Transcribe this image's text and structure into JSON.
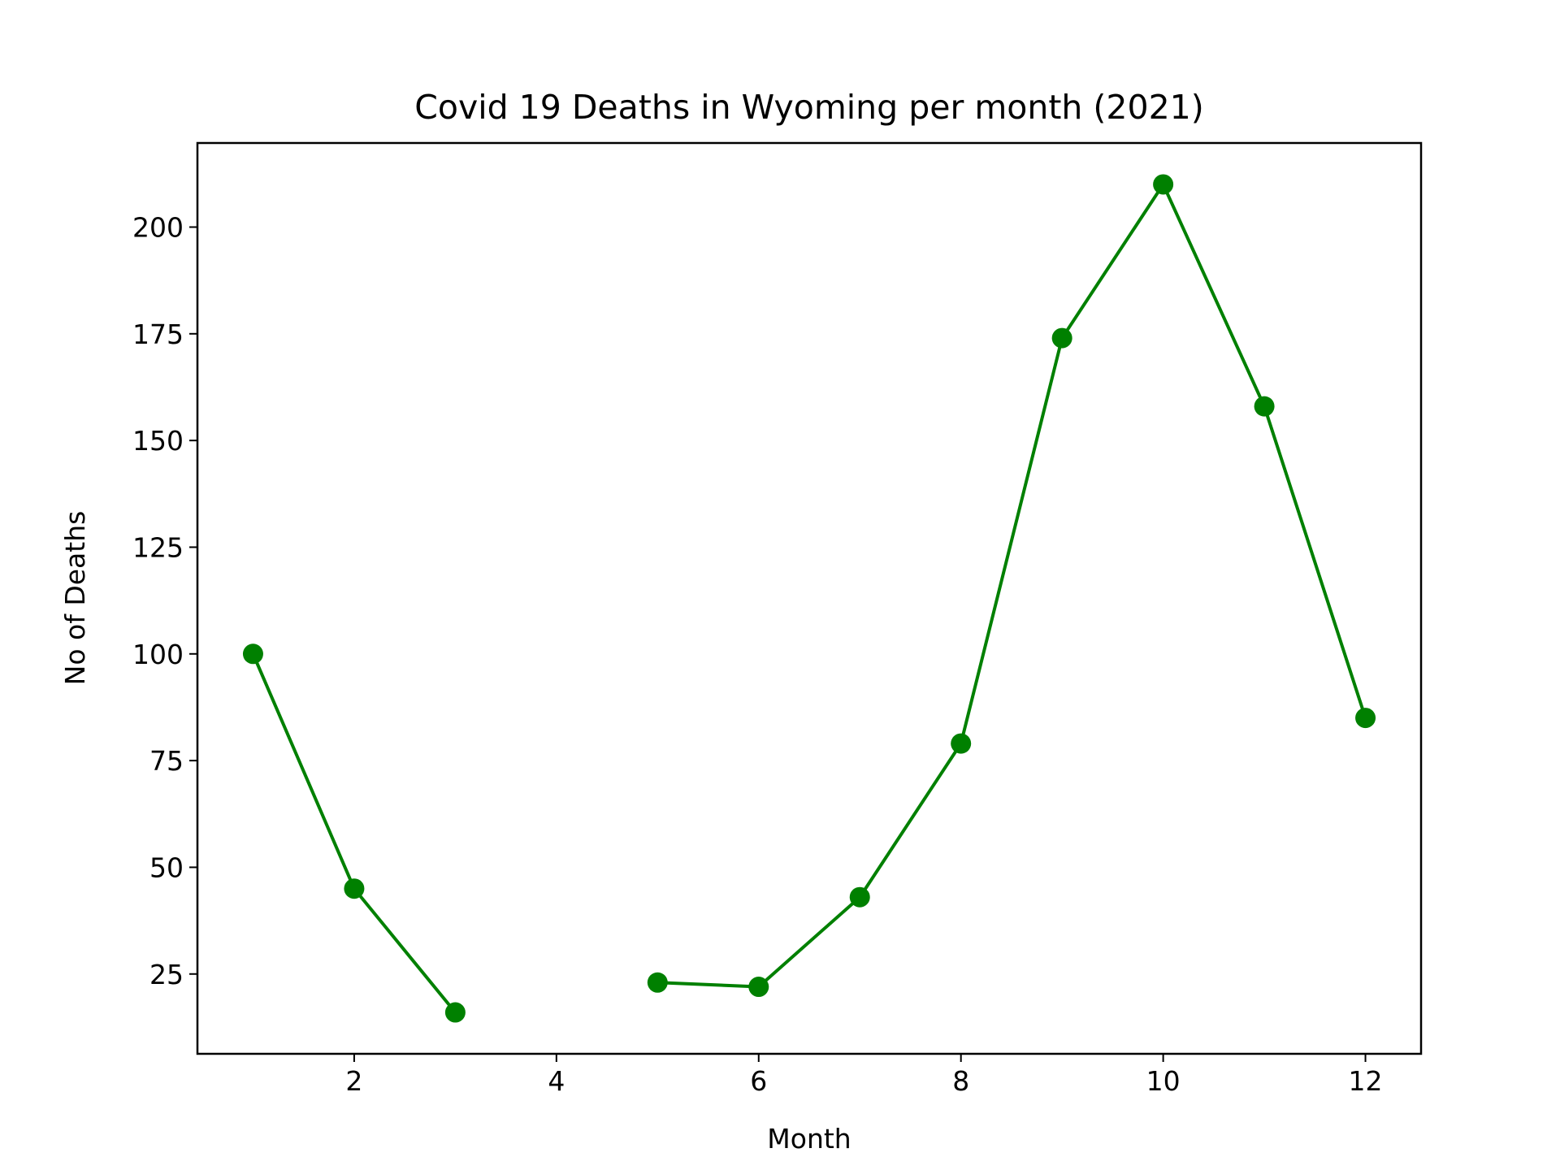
{
  "chart_data": {
    "type": "line",
    "title": "Covid 19 Deaths in Wyoming per month (2021)",
    "xlabel": "Month",
    "ylabel": "No of Deaths",
    "xlim": [
      0.45,
      12.55
    ],
    "ylim": [
      6.3,
      219.7
    ],
    "xticks": [
      2,
      4,
      6,
      8,
      10,
      12
    ],
    "yticks": [
      25,
      50,
      75,
      100,
      125,
      150,
      175,
      200
    ],
    "grid": false,
    "legend": "none",
    "color": "#008000",
    "marker": "circle",
    "series": [
      {
        "x": [
          1,
          2,
          3,
          4,
          5,
          6,
          7,
          8,
          9,
          10,
          11,
          12
        ],
        "values": [
          100,
          45,
          16,
          null,
          23,
          22,
          43,
          79,
          174,
          210,
          158,
          85
        ]
      }
    ]
  }
}
